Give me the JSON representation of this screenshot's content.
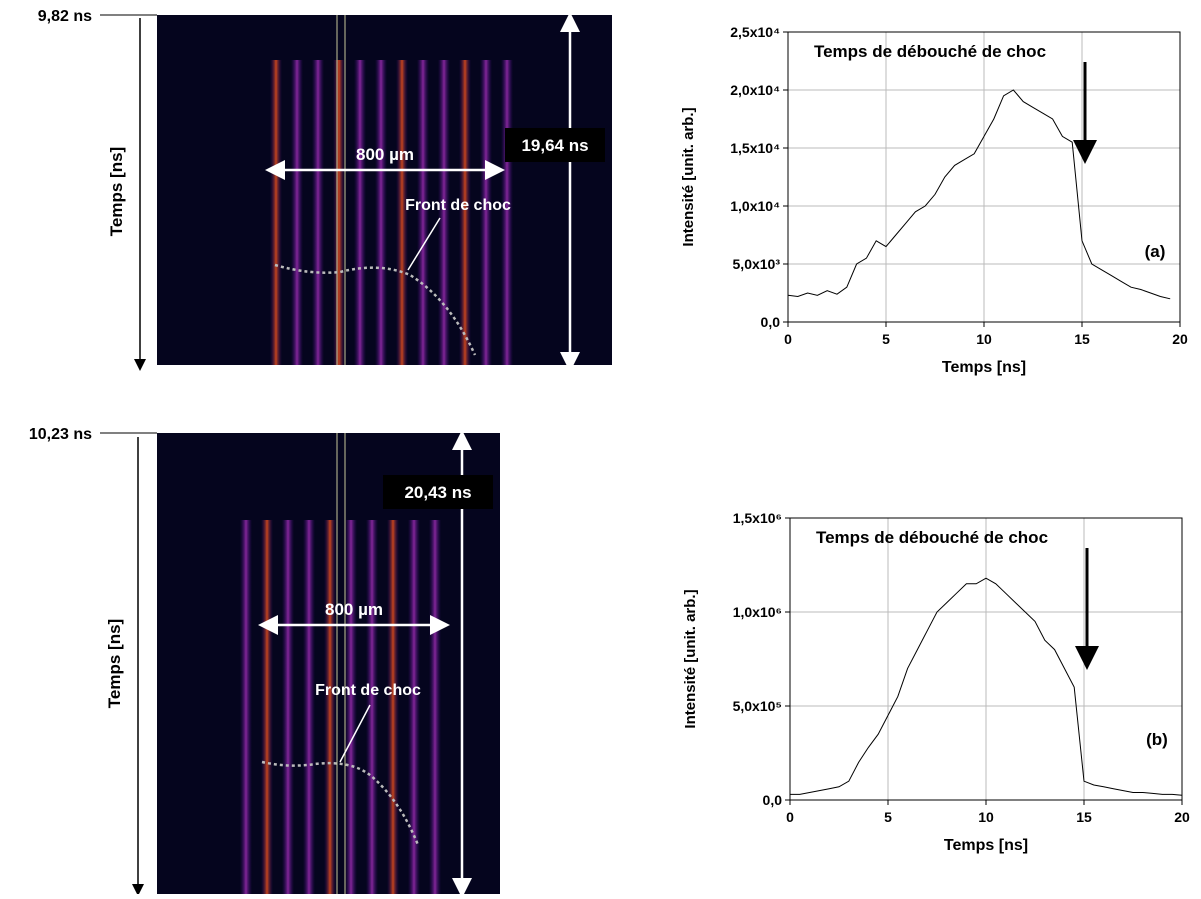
{
  "chart_data": [
    {
      "type": "line",
      "xlabel": "Temps [ns]",
      "ylabel": "Intensité [unit. arb.]",
      "annotation": "Temps de débouché de choc",
      "panel_label": "(a)",
      "x": [
        0,
        0.5,
        1,
        1.5,
        2,
        2.5,
        3,
        3.5,
        4,
        4.5,
        5,
        5.5,
        6,
        6.5,
        7,
        7.5,
        8,
        8.5,
        9,
        9.5,
        10,
        10.5,
        11,
        11.5,
        12,
        12.5,
        13,
        13.5,
        14,
        14.5,
        15,
        15.5,
        16,
        16.5,
        17,
        17.5,
        18,
        18.5,
        19,
        19.5
      ],
      "values": [
        2300,
        2200,
        2500,
        2300,
        2700,
        2400,
        3000,
        5000,
        5500,
        7000,
        6500,
        7500,
        8500,
        9500,
        10000,
        11000,
        12500,
        13500,
        14000,
        14500,
        16000,
        17500,
        19500,
        20000,
        19000,
        18500,
        18000,
        17500,
        16000,
        15500,
        7000,
        5000,
        4500,
        4000,
        3500,
        3000,
        2800,
        2500,
        2200,
        2000
      ],
      "color": "#000000",
      "xlim": [
        0,
        20
      ],
      "xticks": [
        0,
        5,
        10,
        15,
        20
      ],
      "ylim": [
        0,
        25000
      ],
      "yticks": [
        {
          "value": 0,
          "label": "0,0"
        },
        {
          "value": 5000,
          "label": "5,0x10³"
        },
        {
          "value": 10000,
          "label": "1,0x10⁴"
        },
        {
          "value": 15000,
          "label": "1,5x10⁴"
        },
        {
          "value": 20000,
          "label": "2,0x10⁴"
        },
        {
          "value": 25000,
          "label": "2,5x10⁴"
        }
      ],
      "grid": true
    },
    {
      "type": "line",
      "xlabel": "Temps [ns]",
      "ylabel": "Intensité [unit. arb.]",
      "annotation": "Temps de débouché de choc",
      "panel_label": "(b)",
      "x": [
        0,
        0.5,
        1,
        1.5,
        2,
        2.5,
        3,
        3.5,
        4,
        4.5,
        5,
        5.5,
        6,
        6.5,
        7,
        7.5,
        8,
        8.5,
        9,
        9.5,
        10,
        10.5,
        11,
        11.5,
        12,
        12.5,
        13,
        13.5,
        14,
        14.5,
        15,
        15.5,
        16,
        16.5,
        17,
        17.5,
        18,
        18.5,
        19,
        19.5,
        20
      ],
      "values": [
        30000,
        30000,
        40000,
        50000,
        60000,
        70000,
        100000,
        200000,
        280000,
        350000,
        450000,
        550000,
        700000,
        800000,
        900000,
        1000000,
        1050000,
        1100000,
        1150000,
        1150000,
        1180000,
        1150000,
        1100000,
        1050000,
        1000000,
        950000,
        850000,
        800000,
        700000,
        600000,
        100000,
        80000,
        70000,
        60000,
        50000,
        40000,
        40000,
        35000,
        30000,
        30000,
        25000
      ],
      "color": "#000000",
      "xlim": [
        0,
        20
      ],
      "xticks": [
        0,
        5,
        10,
        15,
        20
      ],
      "ylim": [
        0,
        1500000
      ],
      "yticks": [
        {
          "value": 0,
          "label": "0,0"
        },
        {
          "value": 500000,
          "label": "5,0x10⁵"
        },
        {
          "value": 1000000,
          "label": "1,0x10⁶"
        },
        {
          "value": 1500000,
          "label": "1,5x10⁶"
        }
      ],
      "grid": true
    }
  ],
  "streak_images": [
    {
      "start_time": "9,82 ns",
      "axis_label": "Temps [ns]",
      "width_label": "800 µm",
      "duration": "19,64 ns",
      "front_label": "Front de choc"
    },
    {
      "start_time": "10,23 ns",
      "axis_label": "Temps [ns]",
      "width_label": "800 µm",
      "duration": "20,43 ns",
      "front_label": "Front de choc"
    }
  ]
}
